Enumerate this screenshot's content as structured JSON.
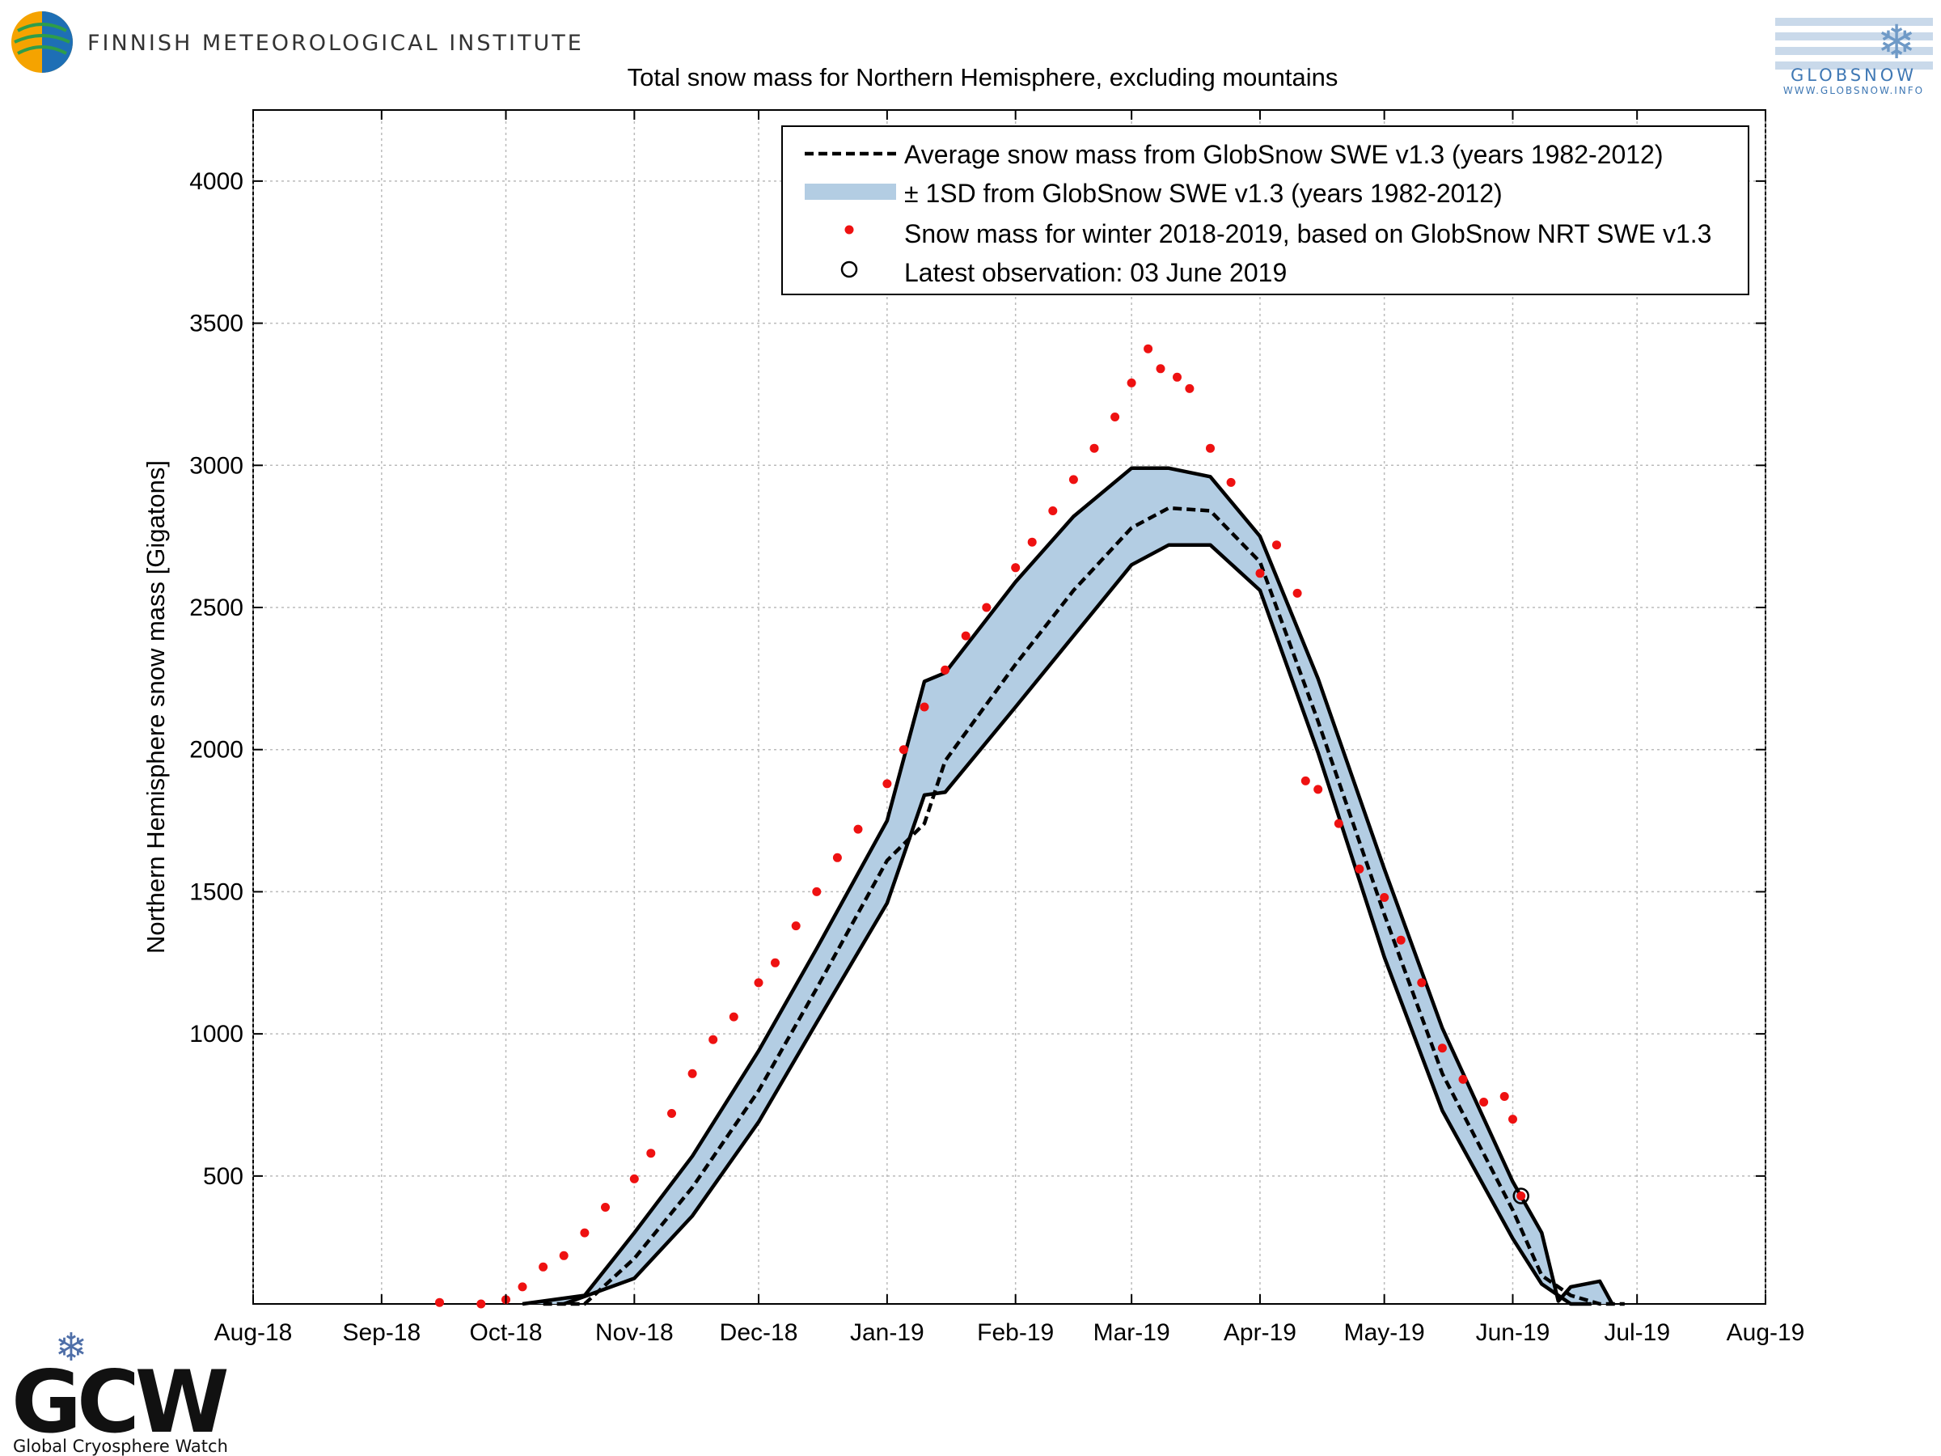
{
  "header": {
    "institute_name": "FINNISH METEOROLOGICAL INSTITUTE",
    "globsnow_logo_text": "GLOBSNOW",
    "globsnow_url": "WWW.GLOBSNOW.INFO"
  },
  "footer": {
    "gcw_logo_text": "GCW",
    "gcw_caption": "Global Cryosphere Watch"
  },
  "colors": {
    "band_fill": "#b3cde3",
    "band_edge": "#000000",
    "obs_points": "#ee1111",
    "grid": "#bbbbbb"
  },
  "chart_data": {
    "type": "line",
    "title": "Total snow mass for Northern Hemisphere, excluding mountains",
    "xlabel": "",
    "ylabel": "Northern Hemisphere snow mass [Gigatons]",
    "x_tick_labels": [
      "Aug-18",
      "Sep-18",
      "Oct-18",
      "Nov-18",
      "Dec-18",
      "Jan-19",
      "Feb-19",
      "Mar-19",
      "Apr-19",
      "May-19",
      "Jun-19",
      "Jul-19",
      "Aug-19"
    ],
    "x_range": [
      "2018-08-01",
      "2019-08-01"
    ],
    "y_ticks": [
      500,
      1000,
      1500,
      2000,
      2500,
      3000,
      3500,
      4000
    ],
    "ylim": [
      50,
      4250
    ],
    "grid": true,
    "legend_position": "top-right",
    "legend": [
      "Average snow mass from GlobSnow SWE v1.3 (years 1982-2012)",
      "± 1SD from GlobSnow SWE v1.3 (years 1982-2012)",
      "Snow mass for winter 2018-2019, based on GlobSnow NRT SWE v1.3",
      "Latest observation: 03 June 2019"
    ],
    "series": [
      {
        "style": "dashed-line",
        "points": [
          [
            "2018-10-10",
            0
          ],
          [
            "2018-10-20",
            40
          ],
          [
            "2018-11-01",
            210
          ],
          [
            "2018-11-15",
            460
          ],
          [
            "2018-12-01",
            800
          ],
          [
            "2018-12-15",
            1160
          ],
          [
            "2019-01-01",
            1610
          ],
          [
            "2019-01-10",
            1740
          ],
          [
            "2019-01-15",
            1960
          ],
          [
            "2019-02-01",
            2300
          ],
          [
            "2019-02-15",
            2560
          ],
          [
            "2019-03-01",
            2780
          ],
          [
            "2019-03-10",
            2850
          ],
          [
            "2019-03-20",
            2840
          ],
          [
            "2019-04-01",
            2660
          ],
          [
            "2019-04-15",
            2100
          ],
          [
            "2019-05-01",
            1420
          ],
          [
            "2019-05-15",
            860
          ],
          [
            "2019-06-01",
            380
          ],
          [
            "2019-06-08",
            150
          ],
          [
            "2019-06-15",
            80
          ],
          [
            "2019-06-22",
            20
          ],
          [
            "2019-06-28",
            0
          ]
        ]
      },
      {
        "style": "shaded-band",
        "upper": [
          [
            "2018-10-05",
            0
          ],
          [
            "2018-10-20",
            80
          ],
          [
            "2018-11-01",
            300
          ],
          [
            "2018-11-15",
            570
          ],
          [
            "2018-12-01",
            940
          ],
          [
            "2018-12-15",
            1300
          ],
          [
            "2019-01-01",
            1750
          ],
          [
            "2019-01-10",
            2240
          ],
          [
            "2019-01-15",
            2270
          ],
          [
            "2019-02-01",
            2590
          ],
          [
            "2019-02-15",
            2820
          ],
          [
            "2019-03-01",
            2990
          ],
          [
            "2019-03-10",
            2990
          ],
          [
            "2019-03-20",
            2960
          ],
          [
            "2019-04-01",
            2750
          ],
          [
            "2019-04-15",
            2250
          ],
          [
            "2019-05-01",
            1580
          ],
          [
            "2019-05-15",
            1020
          ],
          [
            "2019-06-01",
            480
          ],
          [
            "2019-06-08",
            300
          ],
          [
            "2019-06-12",
            60
          ],
          [
            "2019-06-15",
            110
          ],
          [
            "2019-06-22",
            130
          ],
          [
            "2019-06-25",
            0
          ]
        ],
        "lower": [
          [
            "2018-10-15",
            0
          ],
          [
            "2018-11-01",
            140
          ],
          [
            "2018-11-15",
            360
          ],
          [
            "2018-12-01",
            690
          ],
          [
            "2018-12-15",
            1040
          ],
          [
            "2019-01-01",
            1460
          ],
          [
            "2019-01-10",
            1840
          ],
          [
            "2019-01-15",
            1850
          ],
          [
            "2019-02-01",
            2150
          ],
          [
            "2019-02-15",
            2400
          ],
          [
            "2019-03-01",
            2650
          ],
          [
            "2019-03-10",
            2720
          ],
          [
            "2019-03-20",
            2720
          ],
          [
            "2019-04-01",
            2560
          ],
          [
            "2019-04-15",
            1990
          ],
          [
            "2019-05-01",
            1270
          ],
          [
            "2019-05-15",
            730
          ],
          [
            "2019-06-01",
            280
          ],
          [
            "2019-06-08",
            120
          ],
          [
            "2019-06-15",
            40
          ],
          [
            "2019-06-20",
            0
          ]
        ]
      },
      {
        "style": "dots",
        "points": [
          [
            "2018-09-15",
            55
          ],
          [
            "2018-09-25",
            40
          ],
          [
            "2018-10-01",
            65
          ],
          [
            "2018-10-05",
            110
          ],
          [
            "2018-10-10",
            180
          ],
          [
            "2018-10-15",
            220
          ],
          [
            "2018-10-20",
            300
          ],
          [
            "2018-10-25",
            390
          ],
          [
            "2018-11-01",
            490
          ],
          [
            "2018-11-05",
            580
          ],
          [
            "2018-11-10",
            720
          ],
          [
            "2018-11-15",
            860
          ],
          [
            "2018-11-20",
            980
          ],
          [
            "2018-11-25",
            1060
          ],
          [
            "2018-12-01",
            1180
          ],
          [
            "2018-12-05",
            1250
          ],
          [
            "2018-12-10",
            1380
          ],
          [
            "2018-12-15",
            1500
          ],
          [
            "2018-12-20",
            1620
          ],
          [
            "2018-12-25",
            1720
          ],
          [
            "2019-01-01",
            1880
          ],
          [
            "2019-01-05",
            2000
          ],
          [
            "2019-01-10",
            2150
          ],
          [
            "2019-01-15",
            2280
          ],
          [
            "2019-01-20",
            2400
          ],
          [
            "2019-01-25",
            2500
          ],
          [
            "2019-02-01",
            2640
          ],
          [
            "2019-02-05",
            2730
          ],
          [
            "2019-02-10",
            2840
          ],
          [
            "2019-02-15",
            2950
          ],
          [
            "2019-02-20",
            3060
          ],
          [
            "2019-02-25",
            3170
          ],
          [
            "2019-03-01",
            3290
          ],
          [
            "2019-03-05",
            3410
          ],
          [
            "2019-03-08",
            3340
          ],
          [
            "2019-03-12",
            3310
          ],
          [
            "2019-03-15",
            3270
          ],
          [
            "2019-03-20",
            3060
          ],
          [
            "2019-03-25",
            2940
          ],
          [
            "2019-04-01",
            2620
          ],
          [
            "2019-04-05",
            2720
          ],
          [
            "2019-04-10",
            2550
          ],
          [
            "2019-04-12",
            1890
          ],
          [
            "2019-04-15",
            1860
          ],
          [
            "2019-04-20",
            1740
          ],
          [
            "2019-04-25",
            1580
          ],
          [
            "2019-05-01",
            1480
          ],
          [
            "2019-05-05",
            1330
          ],
          [
            "2019-05-10",
            1180
          ],
          [
            "2019-05-15",
            950
          ],
          [
            "2019-05-20",
            840
          ],
          [
            "2019-05-25",
            760
          ],
          [
            "2019-05-30",
            780
          ],
          [
            "2019-06-01",
            700
          ],
          [
            "2019-06-03",
            430
          ]
        ]
      }
    ],
    "latest_observation": [
      "2019-06-03",
      430
    ]
  }
}
